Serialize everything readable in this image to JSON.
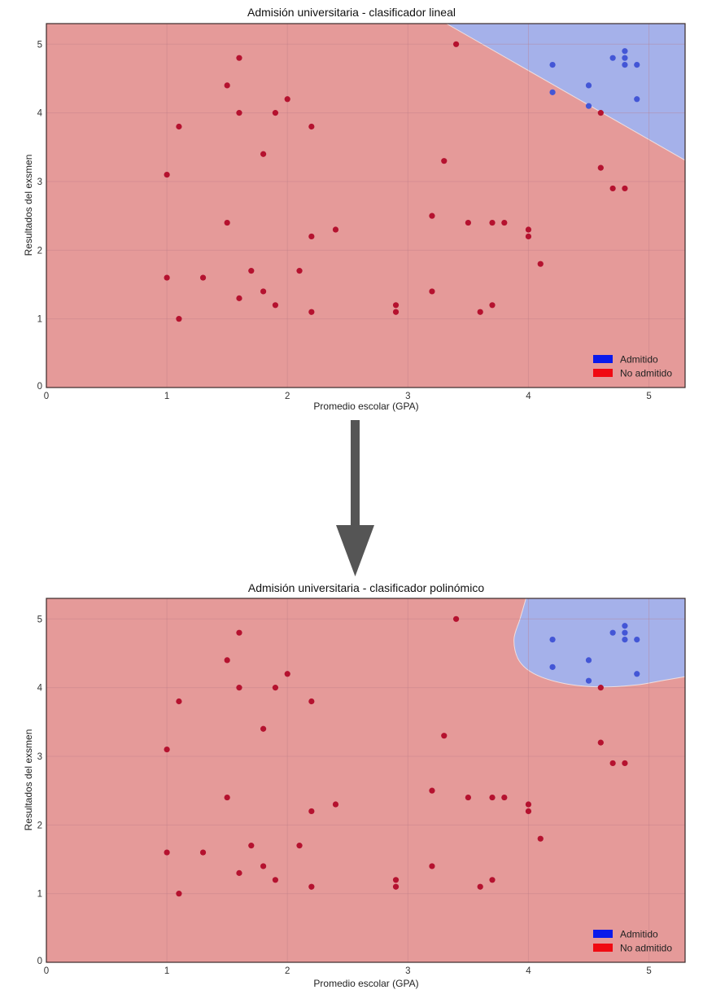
{
  "colors": {
    "not_admitted_region": "#e59a99",
    "admitted_region": "#a5b1ea",
    "not_admitted_point": "#b5122f",
    "admitted_point": "#4356d6",
    "legend_admitted": "#0a1aeb",
    "legend_not_admitted": "#f00a12",
    "grid": "#c98888",
    "arrow": "#555555"
  },
  "arrow": {
    "icon": "down-arrow-icon"
  },
  "chart_data": [
    {
      "type": "scatter",
      "title": "Admisión universitaria - clasificador lineal",
      "xlabel": "Promedio escolar (GPA)",
      "ylabel": "Resultados del exsmen",
      "xlim": [
        0,
        5.3
      ],
      "ylim": [
        0,
        5.3
      ],
      "xticks": [
        "0",
        "1",
        "2",
        "3",
        "4",
        "5"
      ],
      "yticks": [
        "0",
        "1",
        "2",
        "3",
        "4",
        "5"
      ],
      "grid": true,
      "legend": {
        "position": "bottom-right",
        "entries": [
          "Admitido",
          "No admitido"
        ]
      },
      "decision_boundary": {
        "kind": "linear",
        "points": [
          [
            3.32,
            5.3
          ],
          [
            5.3,
            3.31
          ]
        ]
      },
      "series": [
        {
          "name": "Admitido",
          "points": [
            [
              4.2,
              4.7
            ],
            [
              4.2,
              4.3
            ],
            [
              4.5,
              4.4
            ],
            [
              4.5,
              4.1
            ],
            [
              4.7,
              4.8
            ],
            [
              4.8,
              4.9
            ],
            [
              4.8,
              4.8
            ],
            [
              4.8,
              4.7
            ],
            [
              4.9,
              4.7
            ],
            [
              4.9,
              4.2
            ]
          ]
        },
        {
          "name": "No admitido",
          "points": [
            [
              1.0,
              3.1
            ],
            [
              1.1,
              3.8
            ],
            [
              1.5,
              4.4
            ],
            [
              1.6,
              4.8
            ],
            [
              1.6,
              4.0
            ],
            [
              1.8,
              3.4
            ],
            [
              1.9,
              4.0
            ],
            [
              2.0,
              4.2
            ],
            [
              2.2,
              3.8
            ],
            [
              3.4,
              5.0
            ],
            [
              3.3,
              3.3
            ],
            [
              4.6,
              4.0
            ],
            [
              4.6,
              3.2
            ],
            [
              4.7,
              2.9
            ],
            [
              4.8,
              2.9
            ],
            [
              1.5,
              2.4
            ],
            [
              2.2,
              2.2
            ],
            [
              2.4,
              2.3
            ],
            [
              1.0,
              1.6
            ],
            [
              1.3,
              1.6
            ],
            [
              1.7,
              1.7
            ],
            [
              2.1,
              1.7
            ],
            [
              1.6,
              1.3
            ],
            [
              1.8,
              1.4
            ],
            [
              1.9,
              1.2
            ],
            [
              2.2,
              1.1
            ],
            [
              1.1,
              1.0
            ],
            [
              2.9,
              1.2
            ],
            [
              2.9,
              1.1
            ],
            [
              3.2,
              2.5
            ],
            [
              3.5,
              2.4
            ],
            [
              3.7,
              2.4
            ],
            [
              3.8,
              2.4
            ],
            [
              4.0,
              2.3
            ],
            [
              4.0,
              2.2
            ],
            [
              4.1,
              1.8
            ],
            [
              3.2,
              1.4
            ],
            [
              3.7,
              1.2
            ],
            [
              3.6,
              1.1
            ]
          ]
        }
      ]
    },
    {
      "type": "scatter",
      "title": "Admisión universitaria - clasificador polinómico",
      "xlabel": "Promedio escolar (GPA)",
      "ylabel": "Resultados del exsmen",
      "xlim": [
        0,
        5.3
      ],
      "ylim": [
        0,
        5.3
      ],
      "xticks": [
        "0",
        "1",
        "2",
        "3",
        "4",
        "5"
      ],
      "yticks": [
        "0",
        "1",
        "2",
        "3",
        "4",
        "5"
      ],
      "grid": true,
      "legend": {
        "position": "bottom-right",
        "entries": [
          "Admitido",
          "No admitido"
        ]
      },
      "decision_boundary": {
        "kind": "polynomial",
        "points": [
          [
            3.98,
            5.3
          ],
          [
            3.93,
            5.0
          ],
          [
            3.88,
            4.7
          ],
          [
            3.92,
            4.4
          ],
          [
            4.05,
            4.2
          ],
          [
            4.3,
            4.06
          ],
          [
            4.6,
            4.01
          ],
          [
            4.9,
            4.04
          ],
          [
            5.1,
            4.1
          ],
          [
            5.3,
            4.16
          ]
        ]
      },
      "series": [
        {
          "name": "Admitido",
          "points": [
            [
              4.2,
              4.7
            ],
            [
              4.2,
              4.3
            ],
            [
              4.5,
              4.4
            ],
            [
              4.5,
              4.1
            ],
            [
              4.7,
              4.8
            ],
            [
              4.8,
              4.9
            ],
            [
              4.8,
              4.8
            ],
            [
              4.8,
              4.7
            ],
            [
              4.9,
              4.7
            ],
            [
              4.9,
              4.2
            ]
          ]
        },
        {
          "name": "No admitido",
          "points": [
            [
              1.0,
              3.1
            ],
            [
              1.1,
              3.8
            ],
            [
              1.5,
              4.4
            ],
            [
              1.6,
              4.8
            ],
            [
              1.6,
              4.0
            ],
            [
              1.8,
              3.4
            ],
            [
              1.9,
              4.0
            ],
            [
              2.0,
              4.2
            ],
            [
              2.2,
              3.8
            ],
            [
              3.4,
              5.0
            ],
            [
              3.3,
              3.3
            ],
            [
              4.6,
              4.0
            ],
            [
              4.6,
              3.2
            ],
            [
              4.7,
              2.9
            ],
            [
              4.8,
              2.9
            ],
            [
              1.5,
              2.4
            ],
            [
              2.2,
              2.2
            ],
            [
              2.4,
              2.3
            ],
            [
              1.0,
              1.6
            ],
            [
              1.3,
              1.6
            ],
            [
              1.7,
              1.7
            ],
            [
              2.1,
              1.7
            ],
            [
              1.6,
              1.3
            ],
            [
              1.8,
              1.4
            ],
            [
              1.9,
              1.2
            ],
            [
              2.2,
              1.1
            ],
            [
              1.1,
              1.0
            ],
            [
              2.9,
              1.2
            ],
            [
              2.9,
              1.1
            ],
            [
              3.2,
              2.5
            ],
            [
              3.5,
              2.4
            ],
            [
              3.7,
              2.4
            ],
            [
              3.8,
              2.4
            ],
            [
              4.0,
              2.3
            ],
            [
              4.0,
              2.2
            ],
            [
              4.1,
              1.8
            ],
            [
              3.2,
              1.4
            ],
            [
              3.7,
              1.2
            ],
            [
              3.6,
              1.1
            ]
          ]
        }
      ]
    }
  ]
}
